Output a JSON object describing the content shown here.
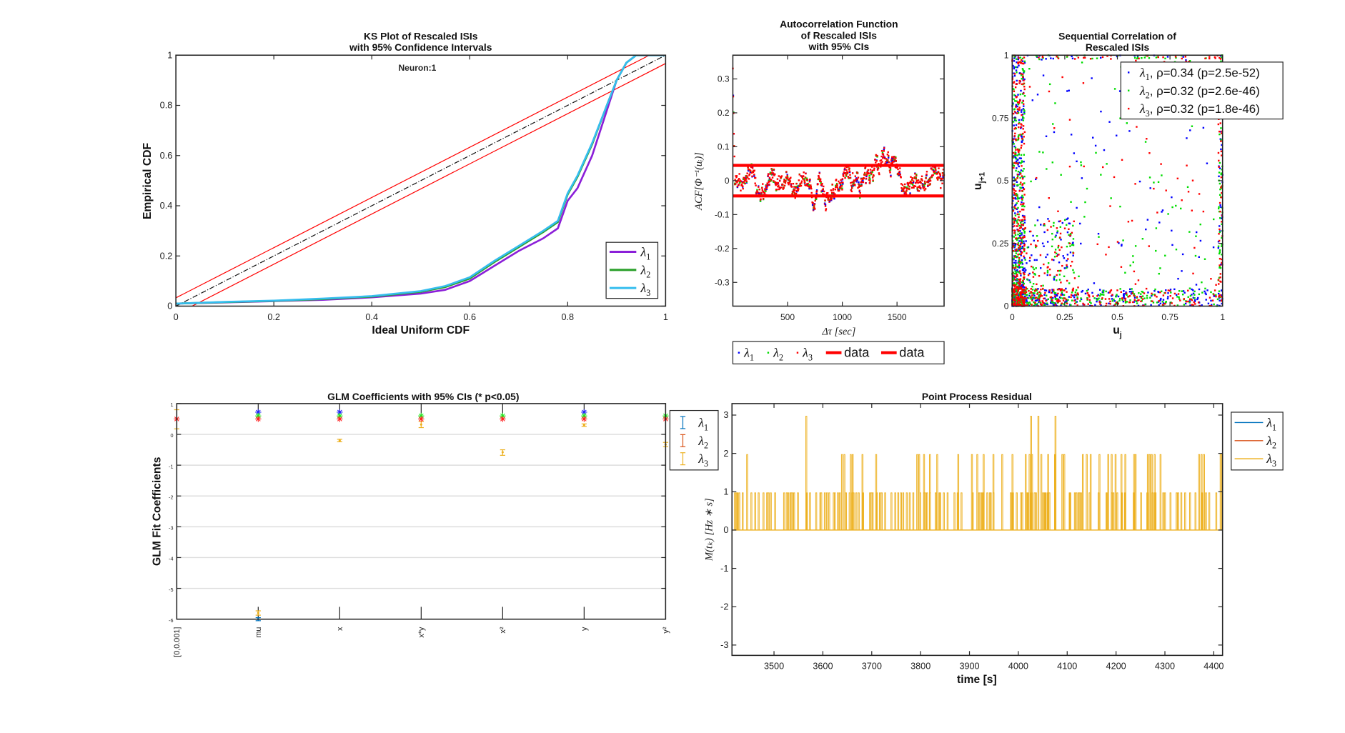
{
  "chart_data": [
    {
      "id": "ks",
      "type": "line",
      "title": [
        "KS Plot of Rescaled ISIs",
        "with 95% Confidence Intervals"
      ],
      "annotation": "Neuron:1",
      "xlabel": "Ideal Uniform CDF",
      "ylabel": "Empirical CDF",
      "xlim": [
        0,
        1
      ],
      "ylim": [
        0,
        1
      ],
      "xticks": [
        0,
        0.2,
        0.4,
        0.6,
        0.8,
        1
      ],
      "yticks": [
        0,
        0.2,
        0.4,
        0.6,
        0.8,
        1
      ],
      "confidence_halfwidth": 0.033,
      "legend_position": "bottom-right",
      "x": [
        0,
        0.1,
        0.2,
        0.3,
        0.4,
        0.5,
        0.55,
        0.6,
        0.65,
        0.7,
        0.75,
        0.78,
        0.8,
        0.82,
        0.85,
        0.88,
        0.9,
        0.92,
        0.94,
        1
      ],
      "series": [
        {
          "name": "λ1",
          "sym": "λ",
          "sub": "1",
          "color": "#8b1fd8",
          "values": [
            0.01,
            0.015,
            0.02,
            0.025,
            0.035,
            0.05,
            0.065,
            0.1,
            0.16,
            0.22,
            0.27,
            0.31,
            0.42,
            0.47,
            0.6,
            0.78,
            0.9,
            0.97,
            1,
            1
          ]
        },
        {
          "name": "λ2",
          "sym": "λ",
          "sub": "2",
          "color": "#2ca02c",
          "values": [
            0.01,
            0.016,
            0.021,
            0.028,
            0.038,
            0.057,
            0.076,
            0.11,
            0.175,
            0.235,
            0.295,
            0.335,
            0.445,
            0.515,
            0.645,
            0.8,
            0.9,
            0.97,
            1,
            1
          ]
        },
        {
          "name": "λ3",
          "sym": "λ",
          "sub": "3",
          "color": "#35bdee",
          "values": [
            0.01,
            0.017,
            0.022,
            0.03,
            0.04,
            0.06,
            0.08,
            0.115,
            0.18,
            0.24,
            0.3,
            0.34,
            0.45,
            0.52,
            0.65,
            0.8,
            0.9,
            0.97,
            1,
            1
          ]
        }
      ]
    },
    {
      "id": "acf",
      "type": "scatter",
      "title": [
        "Autocorrelation Function",
        "of Rescaled ISIs",
        "with 95% CIs"
      ],
      "xlabel": "Δτ [sec]",
      "ylabel": "ACF[Φ⁻¹(uᵢ)]",
      "xlim": [
        0,
        1930
      ],
      "ylim": [
        -0.37,
        0.37
      ],
      "xticks": [
        500,
        1000,
        1500
      ],
      "yticks": [
        -0.3,
        -0.2,
        -0.1,
        0,
        0.1,
        0.2,
        0.3
      ],
      "ci_bounds": [
        0.045,
        -0.045
      ],
      "initial_values": [
        0.33,
        0.25,
        0.2,
        0.14,
        0.1,
        0.07
      ],
      "legend": [
        {
          "sym": "λ",
          "sub": "1",
          "color": "#0000ff"
        },
        {
          "sym": "λ",
          "sub": "2",
          "color": "#00dd00"
        },
        {
          "sym": "λ",
          "sub": "3",
          "color": "#ff0000"
        },
        {
          "label": "data",
          "color": "#ff0000"
        },
        {
          "label": "data",
          "color": "#ff0000"
        }
      ],
      "legend_position": "outside-right"
    },
    {
      "id": "seq",
      "type": "scatter",
      "title": [
        "Sequential Correlation of",
        "Rescaled ISIs"
      ],
      "xlabel": "u",
      "xlabel_sub": "j",
      "ylabel": "u",
      "ylabel_sub": "j+1",
      "xlim": [
        0,
        1
      ],
      "ylim": [
        0,
        1
      ],
      "xticks": [
        0,
        0.25,
        0.5,
        0.75,
        1
      ],
      "yticks": [
        0,
        0.25,
        0.5,
        0.75,
        1
      ],
      "legend_position": "top-right",
      "series": [
        {
          "sym": "λ",
          "sub": "1",
          "text": ", ρ=0.34 (p=2.5e-52)",
          "rho": 0.34,
          "p": "2.5e-52",
          "color": "#0000ff"
        },
        {
          "sym": "λ",
          "sub": "2",
          "text": ", ρ=0.32 (p=2.6e-46)",
          "rho": 0.32,
          "p": "2.6e-46",
          "color": "#00dd00"
        },
        {
          "sym": "λ",
          "sub": "3",
          "text": ", ρ=0.32 (p=1.8e-46)",
          "rho": 0.32,
          "p": "1.8e-46",
          "color": "#ff0000"
        }
      ]
    },
    {
      "id": "glm",
      "type": "scatter",
      "title": "GLM Coefficients with 95% CIs (* p<0.05)",
      "ylabel": "GLM Fit Coefficients",
      "categories": [
        "[0,0.001]",
        "mu",
        "x",
        "x*y",
        "x²",
        "y",
        "y²"
      ],
      "ylim": [
        -6,
        1
      ],
      "yticks": [
        -6,
        -5,
        -4,
        -3,
        -2,
        -1,
        0,
        1
      ],
      "grid": true,
      "legend_position": "outside-right",
      "series": [
        {
          "sym": "λ",
          "sub": "1",
          "color": "#0072BD",
          "values": [
            null,
            -6.0,
            null,
            null,
            null,
            null,
            null
          ],
          "ci": [
            null,
            [
              -6.05,
              -5.95
            ],
            null,
            null,
            null,
            null,
            null
          ],
          "significant_markers": [
            null,
            0.72,
            0.72,
            null,
            null,
            0.72,
            null
          ],
          "marker_color": "#2222ff"
        },
        {
          "sym": "λ",
          "sub": "2",
          "color": "#D95319",
          "values": [
            null,
            null,
            null,
            null,
            null,
            null,
            null
          ],
          "ci": [
            null,
            null,
            null,
            null,
            null,
            null,
            null
          ],
          "significant_markers": [
            null,
            0.6,
            0.6,
            0.6,
            0.6,
            0.6,
            0.6
          ],
          "marker_color": "#22ee22"
        },
        {
          "sym": "λ",
          "sub": "3",
          "color": "#EDB120",
          "values": [
            0.5,
            -5.8,
            -0.2,
            0.32,
            -0.58,
            0.3,
            -0.33
          ],
          "ci": [
            [
              0.18,
              0.8
            ],
            [
              -5.87,
              -5.73
            ],
            [
              -0.24,
              -0.16
            ],
            [
              0.22,
              0.42
            ],
            [
              -0.68,
              -0.5
            ],
            [
              0.26,
              0.34
            ],
            [
              -0.4,
              -0.26
            ]
          ],
          "significant_markers": [
            0.5,
            0.5,
            0.5,
            0.5,
            0.5,
            0.5,
            0.5
          ],
          "marker_color": "#ff2222"
        }
      ]
    },
    {
      "id": "resid",
      "type": "line",
      "title": "Point Process Residual",
      "xlabel": "time [s]",
      "ylabel": "M(tₖ) [Hz ∗ s]",
      "xlim": [
        3414,
        4418
      ],
      "ylim": [
        -3.27,
        3.3
      ],
      "xticks": [
        3500,
        3600,
        3700,
        3800,
        3900,
        4000,
        4100,
        4200,
        4300,
        4400
      ],
      "yticks": [
        -3,
        -2,
        -1,
        0,
        1,
        2,
        3
      ],
      "levels": [
        0,
        1,
        2,
        3
      ],
      "level3_times": [
        3565,
        4025,
        4040,
        4075
      ],
      "level2_times": [
        3444,
        3638,
        3643,
        3656,
        3660,
        3680,
        3708,
        3792,
        3796,
        3806,
        3818,
        3833,
        3876,
        3904,
        3915,
        3928,
        3948,
        3966,
        3987,
        4014,
        4022,
        4027,
        4046,
        4060,
        4074,
        4089,
        4093,
        4131,
        4139,
        4147,
        4165,
        4183,
        4190,
        4198,
        4210,
        4218,
        4236,
        4239,
        4264,
        4268,
        4272,
        4278,
        4290,
        4369,
        4374,
        4379,
        4413,
        4416
      ],
      "legend_position": "outside-right",
      "series": [
        {
          "sym": "λ",
          "sub": "1",
          "color": "#0072BD"
        },
        {
          "sym": "λ",
          "sub": "2",
          "color": "#D95319"
        },
        {
          "sym": "λ",
          "sub": "3",
          "color": "#EDB120"
        }
      ]
    }
  ]
}
